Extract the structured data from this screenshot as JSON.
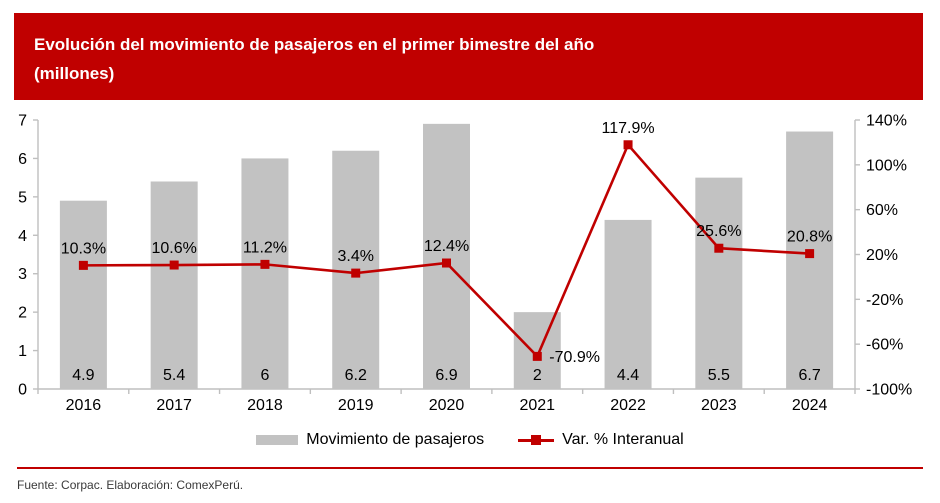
{
  "header": {
    "title": "Evolución del movimiento de pasajeros en el primer bimestre del año",
    "subtitle": "(millones)"
  },
  "chart_data": {
    "type": "bar",
    "combo": "bar+line-dual-axis",
    "title": "Evolución del movimiento de pasajeros en el primer bimestre del año (millones)",
    "categories": [
      "2016",
      "2017",
      "2018",
      "2019",
      "2020",
      "2021",
      "2022",
      "2023",
      "2024"
    ],
    "series": [
      {
        "name": "Movimiento de pasajeros",
        "type": "bar",
        "axis": "left",
        "values": [
          4.9,
          5.4,
          6,
          6.2,
          6.9,
          2,
          4.4,
          5.5,
          6.7
        ],
        "labels": [
          "4.9",
          "5.4",
          "6",
          "6.2",
          "6.9",
          "2",
          "4.4",
          "5.5",
          "6.7"
        ]
      },
      {
        "name": "Var. % Interanual",
        "type": "line",
        "axis": "right",
        "values": [
          10.3,
          10.6,
          11.2,
          3.4,
          12.4,
          -70.9,
          117.9,
          25.6,
          20.8
        ],
        "labels": [
          "10.3%",
          "10.6%",
          "11.2%",
          "3.4%",
          "12.4%",
          "-70.9%",
          "117.9%",
          "25.6%",
          "20.8%"
        ]
      }
    ],
    "left_axis": {
      "min": 0,
      "max": 7,
      "step": 1,
      "tick_labels": [
        "0",
        "1",
        "2",
        "3",
        "4",
        "5",
        "6",
        "7"
      ]
    },
    "right_axis": {
      "min": -100,
      "max": 140,
      "step": 40,
      "tick_labels": [
        "-100%",
        "-60%",
        "-20%",
        "20%",
        "60%",
        "100%",
        "140%"
      ]
    },
    "grid": false,
    "legend_position": "bottom"
  },
  "legend": {
    "items": [
      {
        "label": "Movimiento de pasajeros",
        "swatch": "bar"
      },
      {
        "label": "Var. % Interanual",
        "swatch": "line"
      }
    ]
  },
  "footer": {
    "source_text": "Fuente: Corpac. Elaboración: ComexPerú."
  },
  "colors": {
    "banner": "#C00000",
    "banner_text": "#FFFFFF",
    "bar": "#C2C2C2",
    "line": "#C00000",
    "marker": "#C00000",
    "axis": "#BFBFBF",
    "text": "#000000",
    "rule": "#C00000",
    "background": "#FFFFFF"
  }
}
